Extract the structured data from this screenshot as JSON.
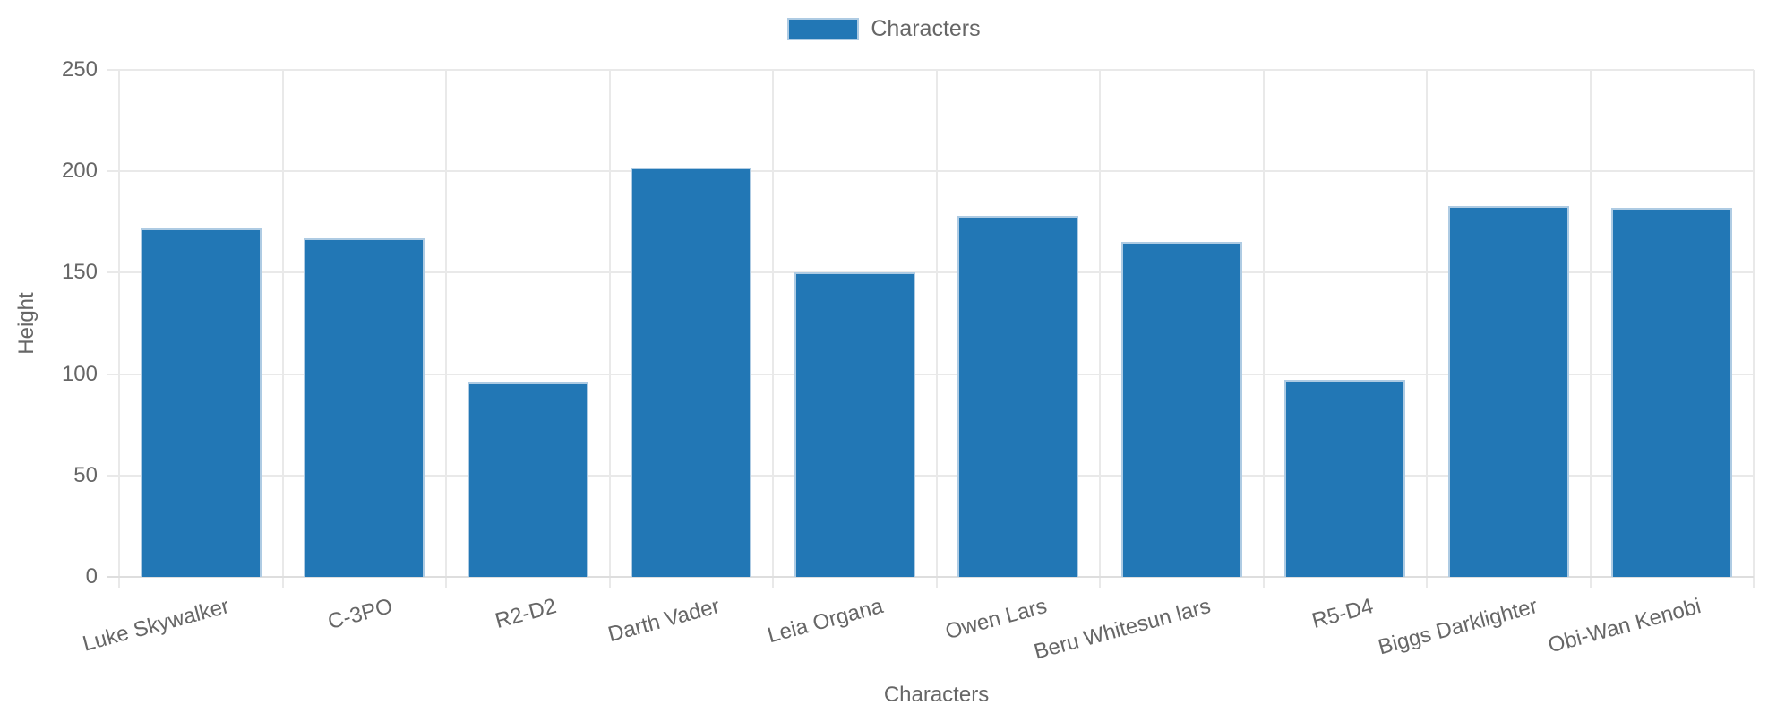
{
  "chart_data": {
    "type": "bar",
    "title": "",
    "categories": [
      "Luke Skywalker",
      "C-3PO",
      "R2-D2",
      "Darth Vader",
      "Leia Organa",
      "Owen Lars",
      "Beru Whitesun lars",
      "R5-D4",
      "Biggs Darklighter",
      "Obi-Wan Kenobi"
    ],
    "series": [
      {
        "name": "Characters",
        "values": [
          172,
          167,
          96,
          202,
          150,
          178,
          165,
          97,
          183,
          182
        ]
      }
    ],
    "xlabel": "Characters",
    "ylabel": "Height",
    "ylim": [
      0,
      250
    ],
    "yticks": [
      0,
      50,
      100,
      150,
      200,
      250
    ],
    "legend_position": "top-center",
    "grid": true,
    "colors": {
      "bar": "#2277b5",
      "bar_border": "#aecbe3",
      "grid": "#e9e9e9",
      "axis": "#dedede",
      "text": "#666666",
      "background": "#ffffff"
    }
  }
}
